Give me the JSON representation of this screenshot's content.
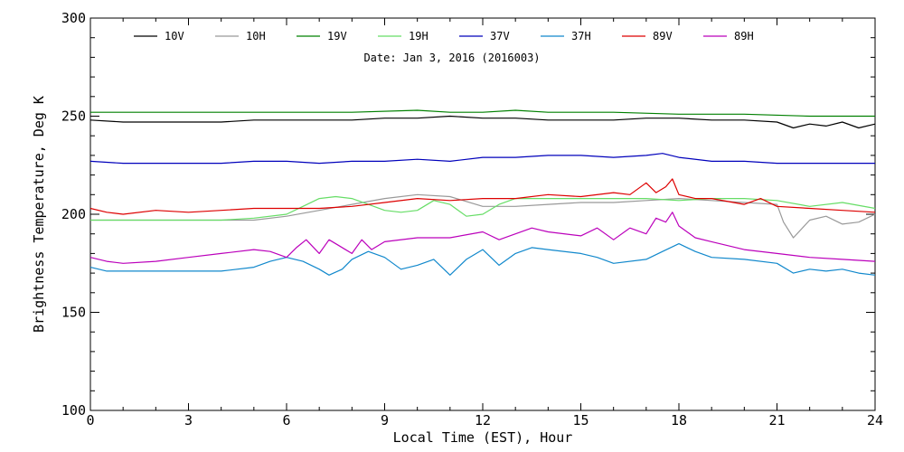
{
  "chart_data": {
    "type": "line",
    "title": "Date: Jan  3, 2016 (2016003)",
    "xlabel": "Local Time (EST), Hour",
    "ylabel": "Brightness Temperature, Deg K",
    "xlim": [
      0,
      24
    ],
    "ylim": [
      100,
      300
    ],
    "x_ticks": [
      "0",
      "3",
      "6",
      "9",
      "12",
      "15",
      "18",
      "21",
      "24"
    ],
    "y_ticks": [
      "100",
      "150",
      "200",
      "250",
      "300"
    ],
    "grid": false,
    "legend_position": "top",
    "series": [
      {
        "name": "10V",
        "color": "#000000",
        "x": [
          0,
          1,
          2,
          3,
          4,
          5,
          6,
          7,
          8,
          9,
          10,
          11,
          12,
          13,
          14,
          15,
          16,
          17,
          18,
          19,
          20,
          21,
          21.5,
          22,
          22.5,
          23,
          23.5,
          24
        ],
        "y": [
          248,
          247,
          247,
          247,
          247,
          248,
          248,
          248,
          248,
          249,
          249,
          250,
          249,
          249,
          248,
          248,
          248,
          249,
          249,
          248,
          248,
          247,
          244,
          246,
          245,
          247,
          244,
          246
        ]
      },
      {
        "name": "10H",
        "color": "#999999",
        "x": [
          0,
          1,
          2,
          3,
          4,
          5,
          6,
          7,
          8,
          9,
          10,
          11,
          12,
          13,
          14,
          15,
          16,
          17,
          18,
          19,
          20,
          21,
          21.2,
          21.5,
          22,
          22.5,
          23,
          23.5,
          24
        ],
        "y": [
          197,
          197,
          197,
          197,
          197,
          197,
          199,
          202,
          205,
          208,
          210,
          209,
          204,
          204,
          205,
          206,
          206,
          207,
          208,
          207,
          206,
          205,
          196,
          188,
          197,
          199,
          195,
          196,
          200
        ]
      },
      {
        "name": "19V",
        "color": "#008000",
        "x": [
          0,
          2,
          4,
          6,
          8,
          10,
          11,
          12,
          13,
          14,
          16,
          18,
          20,
          22,
          24
        ],
        "y": [
          252,
          252,
          252,
          252,
          252,
          253,
          252,
          252,
          253,
          252,
          252,
          251,
          251,
          250,
          250
        ]
      },
      {
        "name": "19H",
        "color": "#66dd66",
        "x": [
          0,
          1,
          2,
          3,
          4,
          5,
          6,
          6.5,
          7,
          7.5,
          8,
          8.5,
          9,
          9.5,
          10,
          10.5,
          11,
          11.5,
          12,
          12.5,
          13,
          14,
          15,
          16,
          17,
          18,
          19,
          20,
          21,
          22,
          23,
          24
        ],
        "y": [
          197,
          197,
          197,
          197,
          197,
          198,
          200,
          204,
          208,
          209,
          208,
          205,
          202,
          201,
          202,
          207,
          205,
          199,
          200,
          205,
          208,
          208,
          208,
          208,
          208,
          207,
          208,
          208,
          207,
          204,
          206,
          203
        ]
      },
      {
        "name": "37V",
        "color": "#0000bb",
        "x": [
          0,
          1,
          2,
          3,
          4,
          5,
          6,
          7,
          8,
          9,
          10,
          11,
          12,
          13,
          14,
          15,
          16,
          17,
          17.5,
          18,
          19,
          20,
          21,
          22,
          23,
          24
        ],
        "y": [
          227,
          226,
          226,
          226,
          226,
          227,
          227,
          226,
          227,
          227,
          228,
          227,
          229,
          229,
          230,
          230,
          229,
          230,
          231,
          229,
          227,
          227,
          226,
          226,
          226,
          226
        ]
      },
      {
        "name": "37H",
        "color": "#1188cc",
        "x": [
          0,
          0.5,
          1,
          2,
          3,
          4,
          5,
          5.5,
          6,
          6.5,
          7,
          7.3,
          7.7,
          8,
          8.5,
          9,
          9.5,
          10,
          10.5,
          11,
          11.5,
          12,
          12.5,
          13,
          13.5,
          14,
          15,
          15.5,
          16,
          17,
          17.5,
          18,
          18.5,
          19,
          20,
          21,
          21.5,
          22,
          22.5,
          23,
          23.5,
          24
        ],
        "y": [
          173,
          171,
          171,
          171,
          171,
          171,
          173,
          176,
          178,
          176,
          172,
          169,
          172,
          177,
          181,
          178,
          172,
          174,
          177,
          169,
          177,
          182,
          174,
          180,
          183,
          182,
          180,
          178,
          175,
          177,
          181,
          185,
          181,
          178,
          177,
          175,
          170,
          172,
          171,
          172,
          170,
          169
        ]
      },
      {
        "name": "89V",
        "color": "#dd0000",
        "x": [
          0,
          0.5,
          1,
          2,
          3,
          4,
          5,
          6,
          7,
          8,
          9,
          10,
          11,
          12,
          13,
          14,
          15,
          16,
          16.5,
          17,
          17.3,
          17.6,
          17.8,
          18,
          18.5,
          19,
          20,
          20.5,
          21,
          22,
          23,
          24
        ],
        "y": [
          203,
          201,
          200,
          202,
          201,
          202,
          203,
          203,
          203,
          204,
          206,
          208,
          207,
          208,
          208,
          210,
          209,
          211,
          210,
          216,
          211,
          214,
          218,
          210,
          208,
          208,
          205,
          208,
          204,
          203,
          202,
          201
        ]
      },
      {
        "name": "89H",
        "color": "#bb00bb",
        "x": [
          0,
          0.5,
          1,
          2,
          3,
          4,
          5,
          5.5,
          6,
          6.3,
          6.6,
          7,
          7.3,
          7.6,
          8,
          8.3,
          8.6,
          9,
          10,
          11,
          12,
          12.5,
          13,
          13.5,
          14,
          15,
          15.5,
          16,
          16.5,
          17,
          17.3,
          17.6,
          17.8,
          18,
          18.5,
          19,
          20,
          21,
          22,
          23,
          24
        ],
        "y": [
          178,
          176,
          175,
          176,
          178,
          180,
          182,
          181,
          178,
          183,
          187,
          180,
          187,
          184,
          180,
          187,
          182,
          186,
          188,
          188,
          191,
          187,
          190,
          193,
          191,
          189,
          193,
          187,
          193,
          190,
          198,
          196,
          201,
          194,
          188,
          186,
          182,
          180,
          178,
          177,
          176
        ]
      }
    ]
  }
}
